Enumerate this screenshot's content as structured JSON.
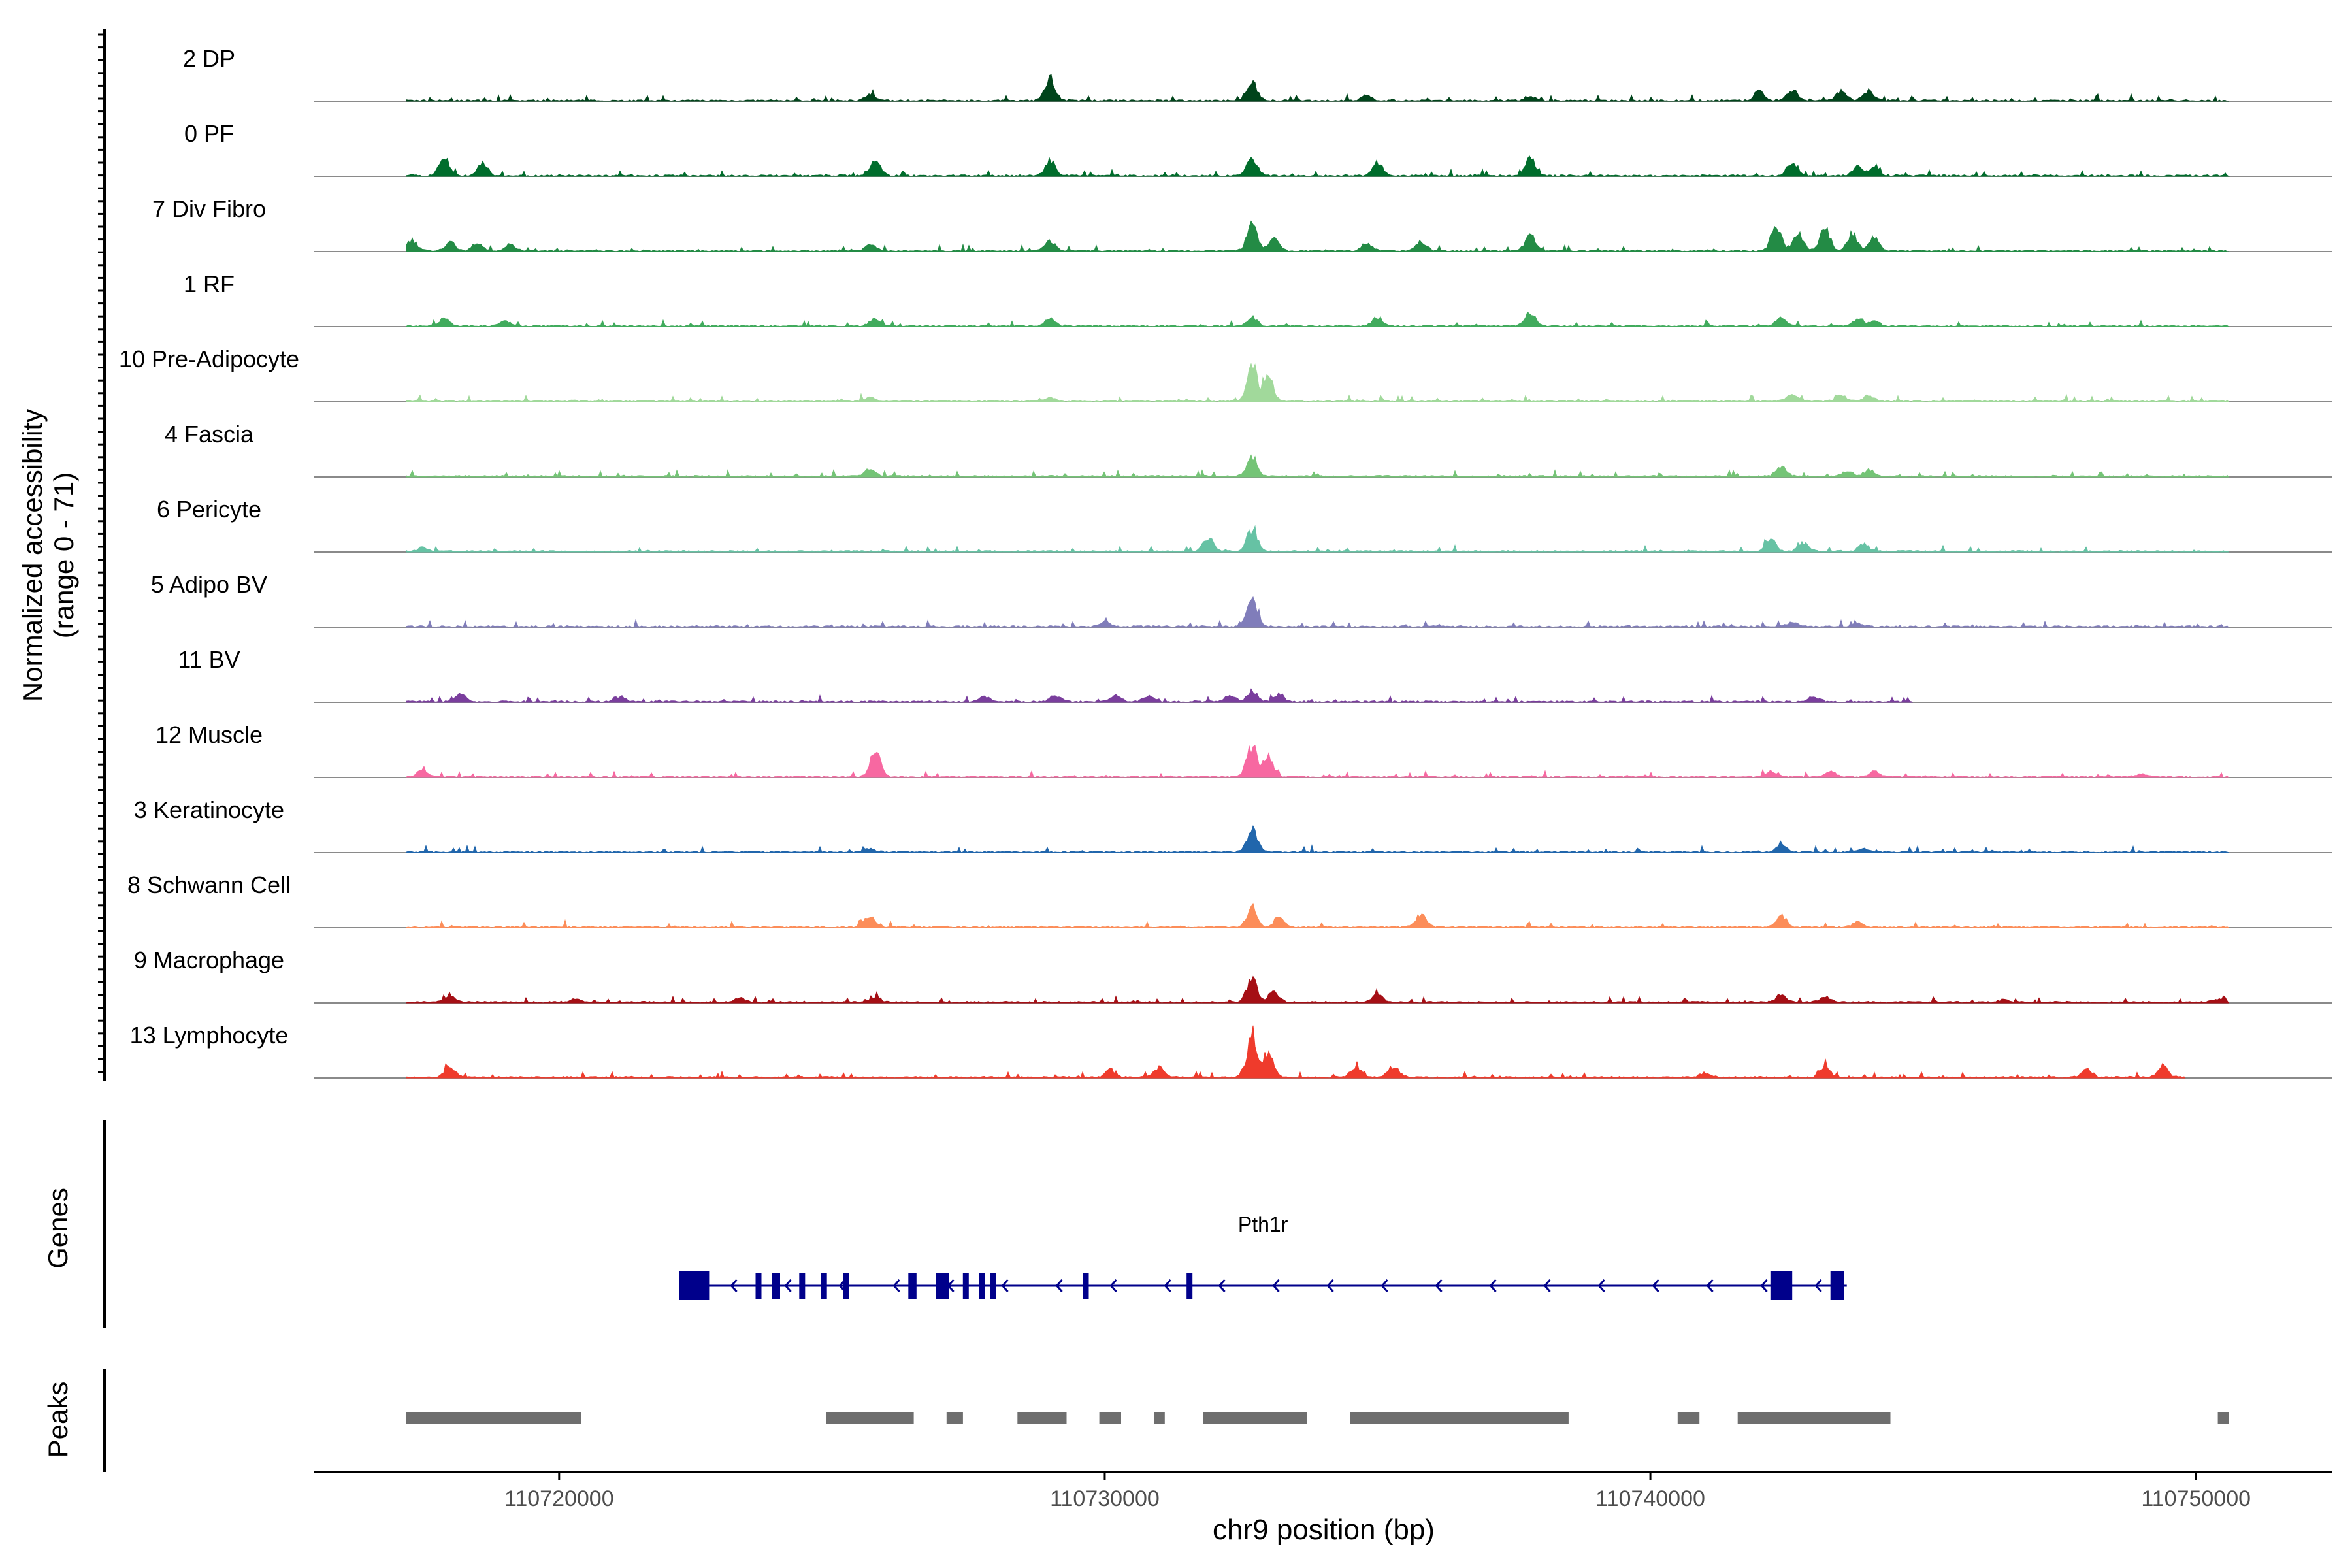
{
  "chart_data": {
    "type": "area",
    "title": "",
    "ylabel": "Normalized accessibility",
    "ylabel_range": "(range 0 - 71)",
    "y_range": [
      0,
      71
    ],
    "xlabel": "chr9 position (bp)",
    "x_range": [
      110715500,
      110752500
    ],
    "x_ticks": [
      110720000,
      110730000,
      110740000,
      110750000
    ],
    "x_tick_labels": [
      "110720000",
      "110730000",
      "110740000",
      "110750000"
    ],
    "tracks": [
      {
        "name": "2 DP",
        "color": "#00441b",
        "start": 110717200,
        "end": 110750600,
        "peaks": [
          [
            110729000,
            21
          ],
          [
            110732700,
            18
          ],
          [
            110742600,
            11
          ],
          [
            110743500,
            10
          ],
          [
            110744000,
            9
          ],
          [
            110742000,
            8
          ],
          [
            110725700,
            5
          ],
          [
            110734800,
            5
          ],
          [
            110737800,
            4
          ]
        ]
      },
      {
        "name": "0 PF",
        "color": "#006d2c",
        "start": 110717200,
        "end": 110750600,
        "peaks": [
          [
            110717900,
            16
          ],
          [
            110718600,
            11
          ],
          [
            110725800,
            15
          ],
          [
            110729000,
            15
          ],
          [
            110732700,
            16
          ],
          [
            110735000,
            12
          ],
          [
            110737800,
            16
          ],
          [
            110742600,
            11
          ],
          [
            110743800,
            8
          ],
          [
            110744100,
            7
          ]
        ]
      },
      {
        "name": "7 Div Fibro",
        "color": "#238b45",
        "start": 110717200,
        "end": 110750600,
        "peaks": [
          [
            110717300,
            10
          ],
          [
            110718000,
            8
          ],
          [
            110718500,
            7
          ],
          [
            110719100,
            6
          ],
          [
            110725700,
            6
          ],
          [
            110729000,
            10
          ],
          [
            110732700,
            24
          ],
          [
            110733100,
            12
          ],
          [
            110734800,
            7
          ],
          [
            110735800,
            9
          ],
          [
            110737800,
            14
          ],
          [
            110742300,
            22
          ],
          [
            110742700,
            18
          ],
          [
            110743200,
            20
          ],
          [
            110743700,
            16
          ],
          [
            110744100,
            14
          ]
        ]
      },
      {
        "name": "1 RF",
        "color": "#41ab5d",
        "start": 110717200,
        "end": 110750600,
        "peaks": [
          [
            110717900,
            7
          ],
          [
            110719000,
            5
          ],
          [
            110725800,
            7
          ],
          [
            110729000,
            7
          ],
          [
            110732700,
            8
          ],
          [
            110735000,
            8
          ],
          [
            110737800,
            13
          ],
          [
            110742400,
            8
          ],
          [
            110743800,
            6
          ],
          [
            110744100,
            5
          ]
        ]
      },
      {
        "name": "10 Pre-Adipocyte",
        "color": "#a1d99b",
        "start": 110717200,
        "end": 110750600,
        "peaks": [
          [
            110725700,
            4
          ],
          [
            110732700,
            34
          ],
          [
            110733000,
            22
          ],
          [
            110742600,
            7
          ],
          [
            110743500,
            6
          ],
          [
            110744000,
            5
          ],
          [
            110729000,
            3
          ]
        ]
      },
      {
        "name": "4 Fascia",
        "color": "#74c476",
        "start": 110717200,
        "end": 110750600,
        "peaks": [
          [
            110725700,
            7
          ],
          [
            110732700,
            18
          ],
          [
            110742400,
            9
          ],
          [
            110743600,
            5
          ],
          [
            110744000,
            6
          ]
        ]
      },
      {
        "name": "6 Pericyte",
        "color": "#66c2a4",
        "start": 110717200,
        "end": 110750600,
        "peaks": [
          [
            110717500,
            4
          ],
          [
            110731900,
            13
          ],
          [
            110732700,
            21
          ],
          [
            110742200,
            12
          ],
          [
            110742800,
            8
          ],
          [
            110743900,
            7
          ]
        ]
      },
      {
        "name": "5 Adipo BV",
        "color": "#807dba",
        "start": 110717200,
        "end": 110750600,
        "peaks": [
          [
            110730000,
            4
          ],
          [
            110732700,
            29
          ],
          [
            110742600,
            4
          ],
          [
            110743800,
            3
          ]
        ]
      },
      {
        "name": "11 BV",
        "color": "#7a3e9d",
        "start": 110717200,
        "end": 110744800,
        "peaks": [
          [
            110718200,
            7
          ],
          [
            110721100,
            5
          ],
          [
            110727800,
            5
          ],
          [
            110729100,
            6
          ],
          [
            110730200,
            6
          ],
          [
            110730800,
            5
          ],
          [
            110732300,
            6
          ],
          [
            110732700,
            10
          ],
          [
            110733200,
            7
          ],
          [
            110743000,
            5
          ]
        ]
      },
      {
        "name": "12 Muscle",
        "color": "#f768a1",
        "start": 110717200,
        "end": 110750600,
        "peaks": [
          [
            110717500,
            6
          ],
          [
            110725800,
            24
          ],
          [
            110732700,
            30
          ],
          [
            110733000,
            18
          ],
          [
            110742200,
            5
          ],
          [
            110743300,
            5
          ],
          [
            110744100,
            5
          ],
          [
            110749000,
            3
          ]
        ]
      },
      {
        "name": "3 Keratinocyte",
        "color": "#2166ac",
        "start": 110717200,
        "end": 110750600,
        "peaks": [
          [
            110732700,
            21
          ],
          [
            110742400,
            6
          ],
          [
            110725700,
            3
          ],
          [
            110743900,
            3
          ]
        ]
      },
      {
        "name": "8 Schwann Cell",
        "color": "#fc8d59",
        "start": 110717200,
        "end": 110750600,
        "peaks": [
          [
            110725700,
            10
          ],
          [
            110732700,
            19
          ],
          [
            110733200,
            10
          ],
          [
            110735800,
            12
          ],
          [
            110742400,
            11
          ],
          [
            110743800,
            5
          ]
        ]
      },
      {
        "name": "9 Macrophage",
        "color": "#a50f15",
        "start": 110717200,
        "end": 110750600,
        "peaks": [
          [
            110718000,
            6
          ],
          [
            110720300,
            3
          ],
          [
            110723300,
            4
          ],
          [
            110725800,
            5
          ],
          [
            110732700,
            23
          ],
          [
            110733100,
            10
          ],
          [
            110735000,
            7
          ],
          [
            110742400,
            7
          ],
          [
            110743200,
            5
          ],
          [
            110746500,
            3
          ],
          [
            110750400,
            3
          ]
        ]
      },
      {
        "name": "13 Lymphocyte",
        "color": "#ef3b2c",
        "start": 110717200,
        "end": 110749800,
        "peaks": [
          [
            110718000,
            11
          ],
          [
            110730100,
            7
          ],
          [
            110731000,
            10
          ],
          [
            110732700,
            40
          ],
          [
            110733000,
            22
          ],
          [
            110734600,
            10
          ],
          [
            110735300,
            11
          ],
          [
            110741000,
            5
          ],
          [
            110743200,
            11
          ],
          [
            110748000,
            8
          ],
          [
            110749400,
            11
          ]
        ]
      }
    ],
    "genes": {
      "panel_label": "Genes",
      "name": "Pth1r",
      "strand": "-",
      "color": "#00008b",
      "start": 110722200,
      "end": 110743600,
      "exons": [
        [
          110722200,
          110722750,
          1
        ],
        [
          110723600,
          110723700,
          0
        ],
        [
          110723900,
          110724050,
          0
        ],
        [
          110724400,
          110724500,
          0
        ],
        [
          110724800,
          110724900,
          0
        ],
        [
          110725200,
          110725300,
          0
        ],
        [
          110726400,
          110726550,
          0
        ],
        [
          110726900,
          110727000,
          0
        ],
        [
          110727000,
          110727150,
          0
        ],
        [
          110727400,
          110727500,
          0
        ],
        [
          110727700,
          110727800,
          0
        ],
        [
          110727900,
          110728000,
          0
        ],
        [
          110729600,
          110729700,
          0
        ],
        [
          110731500,
          110731600,
          0
        ],
        [
          110742200,
          110742600,
          1
        ],
        [
          110743300,
          110743550,
          1
        ]
      ]
    },
    "peaks_track": {
      "panel_label": "Peaks",
      "color": "#6e6e6e",
      "regions": [
        [
          110717200,
          110720400
        ],
        [
          110724900,
          110726500
        ],
        [
          110727100,
          110727400
        ],
        [
          110728400,
          110729300
        ],
        [
          110729900,
          110730300
        ],
        [
          110730900,
          110731100
        ],
        [
          110731800,
          110733700
        ],
        [
          110734500,
          110738500
        ],
        [
          110740500,
          110740900
        ],
        [
          110741600,
          110744400
        ],
        [
          110750400,
          110750600
        ]
      ]
    }
  }
}
